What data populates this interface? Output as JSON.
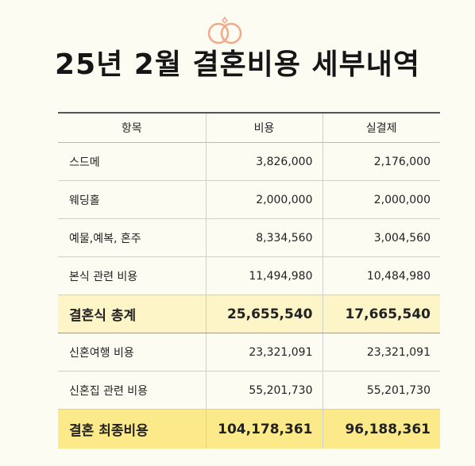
{
  "title": "25년 2월 결혼비용 세부내역",
  "table": {
    "headers": [
      "항목",
      "비용",
      "실결제"
    ],
    "rows": [
      {
        "item": "스드메",
        "cost": "3,826,000",
        "paid": "2,176,000"
      },
      {
        "item": "웨딩홀",
        "cost": "2,000,000",
        "paid": "2,000,000"
      },
      {
        "item": "예물,예복, 혼주",
        "cost": "8,334,560",
        "paid": "3,004,560"
      },
      {
        "item": "본식 관련 비용",
        "cost": "11,494,980",
        "paid": "10,484,980"
      }
    ],
    "subtotal": {
      "item": "결혼식 총계",
      "cost": "25,655,540",
      "paid": "17,665,540"
    },
    "rows2": [
      {
        "item": "신혼여행 비용",
        "cost": "23,321,091",
        "paid": "23,321,091"
      },
      {
        "item": "신혼집 관련 비용",
        "cost": "55,201,730",
        "paid": "55,201,730"
      }
    ],
    "grand_total": {
      "item": "결혼 최종비용",
      "cost": "104,178,361",
      "paid": "96,188,361"
    }
  },
  "colors": {
    "accent": "#f2a98a",
    "subtotal_bg": "#fdf4c7",
    "grand_bg": "#fbe98a"
  }
}
